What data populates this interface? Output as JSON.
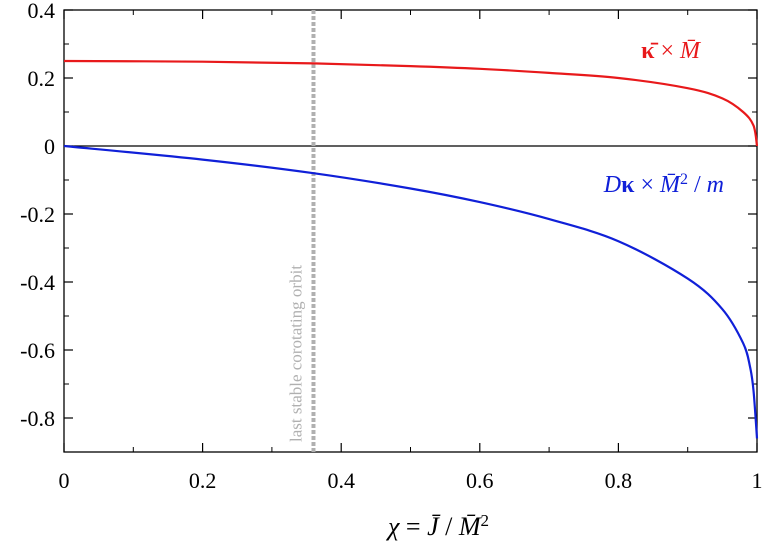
{
  "chart_data": {
    "type": "line",
    "xlabel": "χ = J̄ / M̄²",
    "ylabel": "",
    "xlim": [
      0,
      1
    ],
    "ylim": [
      -0.9,
      0.4
    ],
    "x_ticks": [
      0,
      0.2,
      0.4,
      0.6,
      0.8,
      1
    ],
    "x_tick_labels": [
      "0",
      "0.2",
      "0.4",
      "0.6",
      "0.8",
      "1"
    ],
    "y_ticks": [
      0.4,
      0.2,
      0,
      -0.2,
      -0.4,
      -0.6,
      -0.8
    ],
    "y_tick_labels": [
      "0.4",
      "0.2",
      "0",
      "-0.2",
      "-0.4",
      "-0.6",
      "-0.8"
    ],
    "grid": false,
    "zero_line": true,
    "series": [
      {
        "name": "κ̄ × M̄",
        "color": "#e8191b",
        "x": [
          0,
          0.2,
          0.36,
          0.5,
          0.6,
          0.7,
          0.8,
          0.9,
          0.95,
          0.98,
          0.995,
          1.0
        ],
        "y": [
          0.25,
          0.248,
          0.243,
          0.235,
          0.227,
          0.215,
          0.2,
          0.17,
          0.14,
          0.1,
          0.06,
          0.0
        ]
      },
      {
        "name": "Dκ × M̄² / m",
        "color": "#1020d8",
        "x": [
          0,
          0.2,
          0.36,
          0.5,
          0.6,
          0.7,
          0.8,
          0.9,
          0.95,
          0.98,
          0.99,
          0.995,
          1.0
        ],
        "y": [
          0.0,
          -0.04,
          -0.08,
          -0.125,
          -0.165,
          -0.215,
          -0.28,
          -0.39,
          -0.48,
          -0.58,
          -0.65,
          -0.72,
          -0.86
        ]
      }
    ],
    "vertical_line": {
      "x": 0.36,
      "label": "last stable corotating orbit",
      "color": "#b0b0b0"
    }
  }
}
